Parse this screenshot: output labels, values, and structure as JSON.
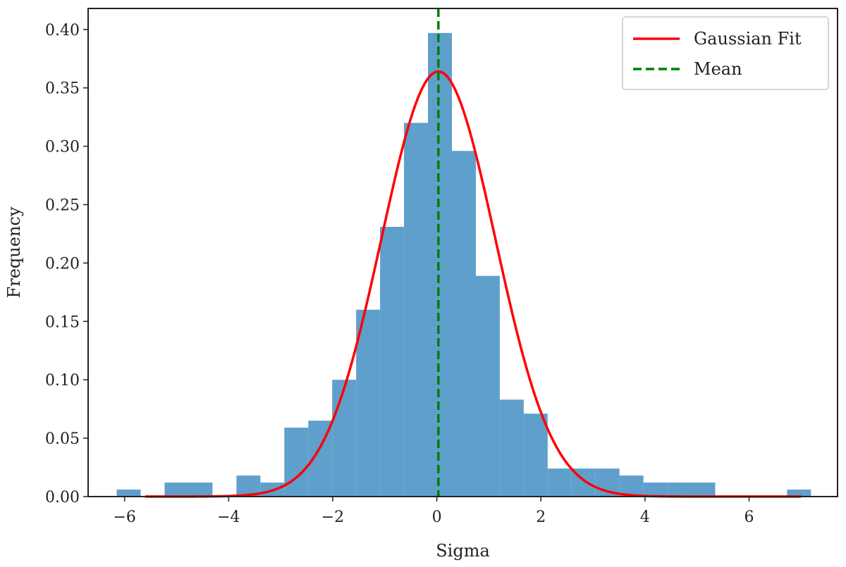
{
  "chart_data": {
    "type": "bar",
    "xlabel": "Sigma",
    "ylabel": "Frequency",
    "xlim": [
      -6.7,
      7.7
    ],
    "ylim": [
      0,
      0.418
    ],
    "xticks": [
      -6,
      -4,
      -2,
      0,
      2,
      4,
      6
    ],
    "yticks": [
      0.0,
      0.05,
      0.1,
      0.15,
      0.2,
      0.25,
      0.3,
      0.35,
      0.4
    ],
    "ytick_labels": [
      "0.00",
      "0.05",
      "0.10",
      "0.15",
      "0.20",
      "0.25",
      "0.30",
      "0.35",
      "0.40"
    ],
    "histogram": {
      "name": "",
      "color": "#5f9fcc",
      "bin_edges": [
        -6.15,
        -5.69,
        -5.23,
        -4.77,
        -4.31,
        -3.85,
        -3.39,
        -2.93,
        -2.47,
        -2.01,
        -1.55,
        -1.09,
        -0.63,
        -0.17,
        0.29,
        0.75,
        1.21,
        1.67,
        2.13,
        2.59,
        3.05,
        3.51,
        3.97,
        4.43,
        4.89,
        5.35,
        5.81,
        6.27,
        6.73,
        7.19
      ],
      "values": [
        0.006,
        0.0,
        0.012,
        0.012,
        0.0,
        0.018,
        0.012,
        0.059,
        0.065,
        0.1,
        0.16,
        0.231,
        0.32,
        0.397,
        0.296,
        0.189,
        0.083,
        0.071,
        0.024,
        0.024,
        0.024,
        0.018,
        0.012,
        0.012,
        0.012,
        0.0,
        0.0,
        0.0,
        0.006
      ]
    },
    "gaussian_fit": {
      "name": "Gaussian Fit",
      "color": "#ff0000",
      "mean": 0.03,
      "sigma": 1.095,
      "peak": 0.364,
      "x_range": [
        -5.6,
        7.0
      ]
    },
    "mean_line": {
      "name": "Mean",
      "color": "#007f00",
      "x": 0.03
    },
    "legend": {
      "position": "top-right",
      "entries": [
        "Gaussian Fit",
        "Mean"
      ]
    },
    "grid": false
  }
}
